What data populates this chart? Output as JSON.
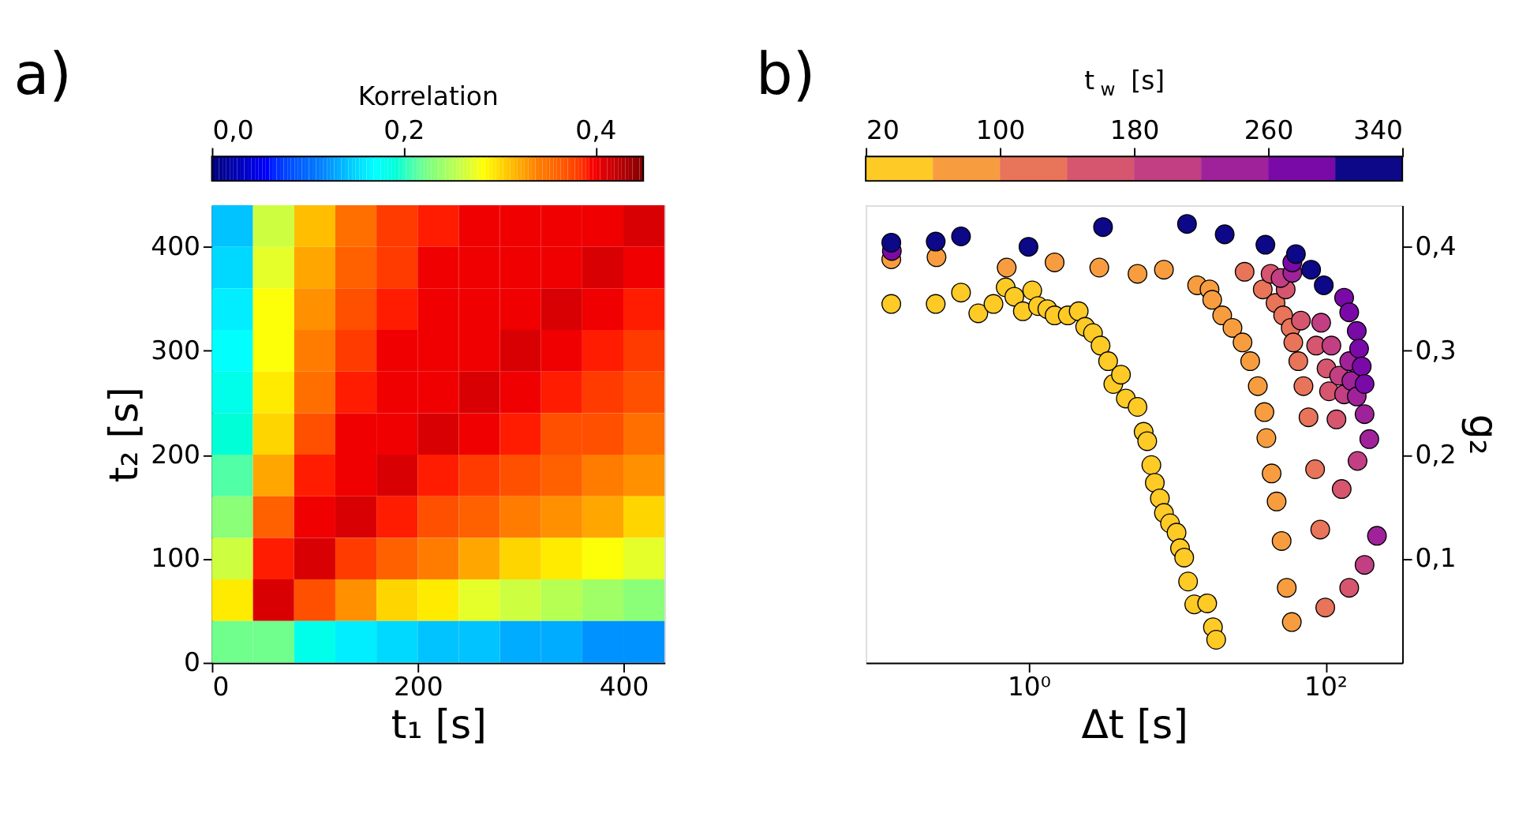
{
  "chart_data": [
    {
      "type": "heatmap",
      "annotations": [
        "a)"
      ],
      "xlabel": "t₁ [s]",
      "ylabel": "t₂ [s]",
      "clabel": "Korrelation",
      "xlim": [
        0,
        440
      ],
      "ylim": [
        0,
        440
      ],
      "xticks": [
        0,
        200,
        400
      ],
      "yticks": [
        0,
        100,
        200,
        300,
        400
      ],
      "clim": [
        0,
        0.45
      ],
      "cticks": [
        {
          "value": 0,
          "label": "0,0"
        },
        {
          "value": 0.2,
          "label": "0,2"
        },
        {
          "value": 0.4,
          "label": "0,4"
        }
      ],
      "colors": [
        "#00007f",
        "#0000ff",
        "#007fff",
        "#00ffff",
        "#7fff7f",
        "#ffff00",
        "#ff7f00",
        "#ff0000",
        "#7f0000"
      ],
      "x": [
        20,
        60,
        100,
        140,
        180,
        220,
        260,
        300,
        340,
        380,
        420
      ],
      "cells": [
        [
          0.14,
          0.26,
          0.31,
          0.35,
          0.38,
          0.39,
          0.4,
          0.4,
          0.4,
          0.4,
          0.41
        ],
        [
          0.15,
          0.27,
          0.32,
          0.36,
          0.38,
          0.4,
          0.4,
          0.4,
          0.4,
          0.41,
          0.4
        ],
        [
          0.16,
          0.28,
          0.33,
          0.37,
          0.39,
          0.4,
          0.4,
          0.4,
          0.41,
          0.4,
          0.39
        ],
        [
          0.17,
          0.28,
          0.34,
          0.38,
          0.4,
          0.4,
          0.4,
          0.41,
          0.4,
          0.39,
          0.38
        ],
        [
          0.18,
          0.29,
          0.35,
          0.39,
          0.4,
          0.4,
          0.41,
          0.4,
          0.39,
          0.38,
          0.37
        ],
        [
          0.19,
          0.3,
          0.37,
          0.4,
          0.4,
          0.41,
          0.4,
          0.39,
          0.37,
          0.37,
          0.35
        ],
        [
          0.21,
          0.32,
          0.39,
          0.4,
          0.41,
          0.39,
          0.38,
          0.37,
          0.36,
          0.34,
          0.33
        ],
        [
          0.23,
          0.36,
          0.4,
          0.41,
          0.39,
          0.37,
          0.36,
          0.34,
          0.33,
          0.32,
          0.3
        ],
        [
          0.26,
          0.39,
          0.41,
          0.38,
          0.36,
          0.34,
          0.32,
          0.3,
          0.29,
          0.28,
          0.27
        ],
        [
          0.29,
          0.41,
          0.37,
          0.33,
          0.3,
          0.29,
          0.27,
          0.26,
          0.25,
          0.24,
          0.23
        ],
        [
          0.22,
          0.22,
          0.18,
          0.16,
          0.15,
          0.14,
          0.14,
          0.13,
          0.13,
          0.12,
          0.12
        ]
      ]
    },
    {
      "type": "scatter",
      "annotations": [
        "b)"
      ],
      "xlabel": "Δt [s]",
      "y2label": "g₂",
      "clabel": "t$_{w}$ [s]",
      "log": "x",
      "marker": "circle",
      "xlim": [
        0.08,
        330
      ],
      "xticks": [
        {
          "value": 1,
          "label": "10⁰"
        },
        {
          "value": 100,
          "label": "10²"
        }
      ],
      "y2lim": [
        0,
        0.44
      ],
      "y2ticks": [
        {
          "value": 0.1,
          "label": "0,1"
        },
        {
          "value": 0.2,
          "label": "0,2"
        },
        {
          "value": 0.3,
          "label": "0,3"
        },
        {
          "value": 0.4,
          "label": "0,4"
        }
      ],
      "clim": [
        20,
        340
      ],
      "cticks": [
        20,
        100,
        180,
        260,
        340
      ],
      "series": [
        {
          "axis": "y2",
          "color": "#fdca26",
          "x": [
            0.119,
            0.237,
            0.351,
            0.459,
            0.581,
            0.702,
            0.803,
            0.916,
            1.06,
            1.16,
            1.34,
            1.5,
            1.84,
            2.18,
            2.41,
            2.72,
            3.06,
            3.44,
            3.73,
            4.2,
            4.53,
            5.43,
            5.97,
            6.31,
            6.73,
            7.1,
            7.68,
            8.18,
            8.99,
            9.95,
            10.5,
            11.2,
            11.9,
            13.1,
            16.0,
            17.5,
            18.4
          ],
          "values": [
            0.345,
            0.345,
            0.356,
            0.336,
            0.345,
            0.361,
            0.352,
            0.338,
            0.358,
            0.343,
            0.34,
            0.334,
            0.334,
            0.338,
            0.323,
            0.317,
            0.305,
            0.29,
            0.268,
            0.277,
            0.254,
            0.246,
            0.222,
            0.213,
            0.19,
            0.173,
            0.158,
            0.144,
            0.134,
            0.125,
            0.11,
            0.101,
            0.078,
            0.056,
            0.057,
            0.034,
            0.022
          ]
        },
        {
          "axis": "y2",
          "color": "#f89d3f",
          "x": [
            0.119,
            0.24,
            0.713,
            1.5,
            3.0,
            5.43,
            8.18,
            13.7,
            16.6,
            17.3,
            20.2,
            23.7,
            27.7,
            31.2,
            35.1,
            38.9,
            40.1,
            43.5,
            47.0,
            50.8,
            55.0,
            59.5
          ],
          "values": [
            0.388,
            0.39,
            0.38,
            0.385,
            0.38,
            0.374,
            0.378,
            0.363,
            0.359,
            0.349,
            0.334,
            0.322,
            0.308,
            0.29,
            0.266,
            0.241,
            0.216,
            0.182,
            0.155,
            0.117,
            0.072,
            0.039
          ]
        },
        {
          "axis": "y2",
          "color": "#e8745a",
          "x": [
            28.6,
            37.9,
            46.2,
            52.0,
            58.5,
            60.9,
            65.8,
            71.3,
            77.1,
            85.4,
            92.5,
            100
          ],
          "values": [
            0.376,
            0.359,
            0.346,
            0.334,
            0.322,
            0.308,
            0.29,
            0.266,
            0.236,
            0.186,
            0.128,
            0.053
          ]
        },
        {
          "axis": "y2",
          "color": "#d5566e",
          "x": [
            42.8,
            54.1,
            68.5,
            86.8,
            102,
            106,
            119,
            129,
            145
          ],
          "values": [
            0.374,
            0.359,
            0.329,
            0.305,
            0.283,
            0.261,
            0.234,
            0.167,
            0.072
          ]
        },
        {
          "axis": "y2",
          "color": "#c13f82",
          "x": [
            50.0,
            93.8,
            110,
            124,
            134,
            165,
            184
          ],
          "values": [
            0.37,
            0.327,
            0.305,
            0.276,
            0.258,
            0.194,
            0.094
          ]
        },
        {
          "axis": "y2",
          "color": "#a0229a",
          "x": [
            60.0,
            145,
            150,
            163,
            184,
            198,
            223
          ],
          "values": [
            0.375,
            0.29,
            0.271,
            0.256,
            0.239,
            0.215,
            0.122
          ]
        },
        {
          "axis": "y2",
          "color": "#7a0aa8",
          "x": [
            0.12,
            60.0,
            134,
            145,
            163,
            169,
            176,
            184
          ],
          "values": [
            0.396,
            0.385,
            0.351,
            0.337,
            0.319,
            0.302,
            0.285,
            0.268
          ]
        },
        {
          "axis": "y2",
          "color": "#0d0887",
          "x": [
            0.119,
            0.237,
            0.351,
            1.0,
            3.18,
            11.7,
            21.0,
            39.5,
            63.4,
            80.3,
            97.7
          ],
          "values": [
            0.404,
            0.405,
            0.41,
            0.4,
            0.419,
            0.422,
            0.412,
            0.402,
            0.393,
            0.378,
            0.363
          ]
        }
      ]
    }
  ]
}
